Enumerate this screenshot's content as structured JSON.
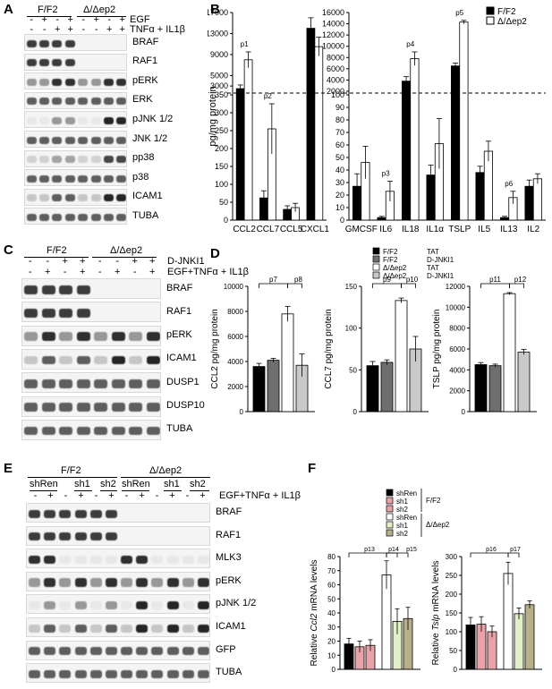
{
  "panel_letters": [
    "A",
    "B",
    "C",
    "D",
    "E",
    "F"
  ],
  "panelA": {
    "groups": [
      "F/F2",
      "Δ/Δep2"
    ],
    "treat_rows": [
      {
        "label": "EGF",
        "signs": [
          "-",
          "+",
          "-",
          "+",
          "-",
          "+",
          "-",
          "+"
        ]
      },
      {
        "label": "TNFα + IL1β",
        "signs": [
          "-",
          "-",
          "+",
          "+",
          "-",
          "-",
          "+",
          "+"
        ]
      }
    ],
    "blots": [
      "BRAF",
      "RAF1",
      "pERK",
      "ERK",
      "pJNK 1/2",
      "JNK 1/2",
      "pp38",
      "p38",
      "ICAM1",
      "TUBA"
    ]
  },
  "panelC": {
    "groups": [
      "F/F2",
      "Δ/Δep2"
    ],
    "treat_rows": [
      {
        "label": "D-JNKI1",
        "signs": [
          "-",
          "-",
          "+",
          "+",
          "-",
          "-",
          "+",
          "+"
        ]
      },
      {
        "label": "EGF+TNFα + IL1β",
        "signs": [
          "-",
          "+",
          "-",
          "+",
          "-",
          "+",
          "-",
          "+"
        ]
      }
    ],
    "blots": [
      "BRAF",
      "RAF1",
      "pERK",
      "ICAM1",
      "DUSP1",
      "DUSP10",
      "TUBA"
    ]
  },
  "panelE": {
    "groups": [
      "F/F2",
      "Δ/Δep2"
    ],
    "subgroups": [
      "shRen",
      "sh1",
      "sh2",
      "shRen",
      "sh1",
      "sh2"
    ],
    "treat_row": {
      "label": "EGF+TNFα + IL1β",
      "signs": [
        "-",
        "+",
        "-",
        "+",
        "-",
        "+",
        "-",
        "+",
        "-",
        "+",
        "-",
        "+"
      ]
    },
    "blots": [
      "BRAF",
      "RAF1",
      "MLK3",
      "pERK",
      "pJNK 1/2",
      "ICAM1",
      "GFP",
      "TUBA"
    ]
  },
  "colors": {
    "black": "#000000",
    "white": "#ffffff",
    "dark_gray": "#6e6e6e",
    "light_gray": "#c9c9c9",
    "pink": "#e9a3a6",
    "light_green": "#e3efc6",
    "olive": "#b8b08a"
  },
  "chart_data": [
    {
      "id": "B-left",
      "type": "bar",
      "categories": [
        "CCL2",
        "CCL7",
        "CCL5",
        "CXCL1"
      ],
      "series": [
        {
          "name": "F/F2",
          "values": [
            2500,
            62,
            30,
            14000
          ],
          "errors": [
            700,
            20,
            10,
            2000
          ]
        },
        {
          "name": "Δ/Δep2",
          "values": [
            8000,
            255,
            35,
            10500
          ],
          "errors": [
            1500,
            70,
            12,
            1800
          ]
        }
      ],
      "ylabel": "pg/mg protein",
      "broken_axis": {
        "lower_range": [
          0,
          350
        ],
        "lower_ticks": [
          0,
          50,
          100,
          150,
          200,
          250,
          300,
          350
        ],
        "upper_range": [
          2000,
          17000
        ],
        "upper_ticks": [
          3000,
          5000,
          9000,
          13000,
          17000
        ]
      },
      "annotations": [
        {
          "text": "p1",
          "category": "CCL2"
        },
        {
          "text": "p2",
          "category": "CCL7"
        }
      ]
    },
    {
      "id": "B-right",
      "type": "bar",
      "categories": [
        "GMCSF",
        "IL6",
        "IL18",
        "IL1α",
        "TSLP",
        "IL5",
        "IL13",
        "IL2"
      ],
      "series": [
        {
          "name": "F/F2",
          "values": [
            27,
            2,
            3800,
            36,
            6500,
            38,
            2,
            27
          ],
          "errors": [
            10,
            1,
            800,
            8,
            500,
            5,
            1,
            5
          ]
        },
        {
          "name": "Δ/Δep2",
          "values": [
            46,
            23,
            7800,
            61,
            14300,
            55,
            18,
            33
          ],
          "errors": [
            13,
            8,
            1200,
            20,
            300,
            8,
            5,
            4
          ]
        }
      ],
      "broken_axis": {
        "lower_range": [
          0,
          100
        ],
        "lower_ticks": [
          0,
          10,
          20,
          30,
          40,
          50,
          60,
          70,
          80,
          90,
          100
        ],
        "upper_range": [
          2000,
          16000
        ],
        "upper_ticks": [
          2000,
          4000,
          6000,
          8000,
          10000,
          12000,
          14000,
          16000
        ]
      },
      "annotations": [
        {
          "text": "p3",
          "category": "IL6"
        },
        {
          "text": "p4",
          "category": "IL18"
        },
        {
          "text": "p5",
          "category": "TSLP"
        },
        {
          "text": "p6",
          "category": "IL13"
        }
      ],
      "legend": "top-right"
    },
    {
      "id": "D",
      "type": "bar",
      "legend_entries": [
        {
          "geno": "F/F2",
          "treat": "TAT"
        },
        {
          "geno": "F/F2",
          "treat": "D-JNKI1"
        },
        {
          "geno": "Δ/Δep2",
          "treat": "TAT"
        },
        {
          "geno": "Δ/Δep2",
          "treat": "D-JNKI1"
        }
      ],
      "charts": [
        {
          "ylabel": "CCL2 pg/mg protein",
          "ylim": [
            0,
            10000
          ],
          "ticks": [
            0,
            2000,
            4000,
            6000,
            8000,
            10000
          ],
          "values": [
            3600,
            4100,
            7800,
            3700
          ],
          "errors": [
            250,
            150,
            600,
            900
          ],
          "pvals": [
            "p7",
            "p8"
          ]
        },
        {
          "ylabel": "CCL7 pg/mg protein",
          "ylim": [
            0,
            150
          ],
          "ticks": [
            0,
            50,
            100,
            150
          ],
          "values": [
            55,
            59,
            133,
            75
          ],
          "errors": [
            5,
            3,
            3,
            15
          ],
          "pvals": [
            "p9",
            "p10"
          ]
        },
        {
          "ylabel": "TSLP pg/mg protein",
          "ylim": [
            0,
            12000
          ],
          "ticks": [
            0,
            2000,
            4000,
            6000,
            8000,
            10000,
            12000
          ],
          "values": [
            4500,
            4400,
            11300,
            5700
          ],
          "errors": [
            200,
            150,
            100,
            250
          ],
          "pvals": [
            "p11",
            "p12"
          ]
        }
      ]
    },
    {
      "id": "F",
      "type": "bar",
      "legend_entries": [
        "shRen",
        "sh1",
        "sh2",
        "shRen",
        "sh1",
        "sh2"
      ],
      "legend_groups": [
        "F/F2",
        "Δ/Δep2"
      ],
      "charts": [
        {
          "ylabel_pre": "Relative ",
          "ylabel_gene": "Ccl2",
          "ylabel_post": " mRNA levels",
          "ylim": [
            0,
            80
          ],
          "ticks": [
            0,
            10,
            20,
            30,
            40,
            50,
            60,
            70,
            80
          ],
          "values": [
            18,
            16,
            17,
            67,
            34,
            36
          ],
          "errors": [
            4,
            4,
            4,
            10,
            9,
            8
          ],
          "pvals": [
            "p13",
            "p14",
            "p15"
          ]
        },
        {
          "ylabel_pre": "Relative ",
          "ylabel_gene": "Tslp",
          "ylabel_post": " mRNA levels",
          "ylim": [
            0,
            300
          ],
          "ticks": [
            0,
            50,
            100,
            150,
            200,
            250,
            300
          ],
          "values": [
            118,
            120,
            100,
            255,
            148,
            172
          ],
          "errors": [
            20,
            20,
            15,
            30,
            15,
            10
          ],
          "pvals": [
            "p16",
            "p17"
          ]
        }
      ]
    }
  ]
}
